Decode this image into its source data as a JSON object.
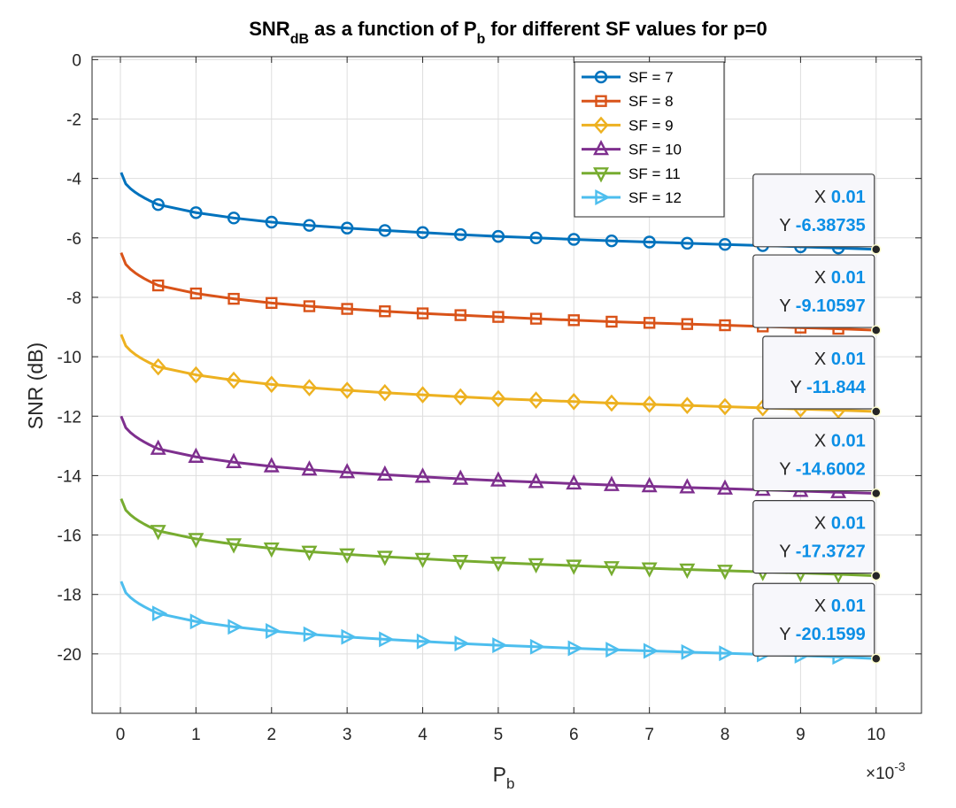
{
  "chart_data": {
    "type": "line",
    "title": {
      "main": "SNR",
      "main_sub": "dB",
      "middle": " as a function of P",
      "middle_sub": "b",
      "tail": " for different SF values for p=0"
    },
    "xlabel": {
      "main": "P",
      "sub": "b"
    },
    "ylabel": "SNR (dB)",
    "x_scale_note": {
      "base": "×10",
      "exponent": "-3"
    },
    "xlim": [
      -0.000375,
      0.0106
    ],
    "ylim": [
      -22,
      0.1
    ],
    "x_ticks": [
      0,
      0.001,
      0.002,
      0.003,
      0.004,
      0.005,
      0.006,
      0.007,
      0.008,
      0.009,
      0.01
    ],
    "x_tick_labels": [
      "0",
      "1",
      "2",
      "3",
      "4",
      "5",
      "6",
      "7",
      "8",
      "9",
      "10"
    ],
    "y_ticks": [
      0,
      -2,
      -4,
      -6,
      -8,
      -10,
      -12,
      -14,
      -16,
      -18,
      -20
    ],
    "y_tick_labels": [
      "0",
      "-2",
      "-4",
      "-6",
      "-8",
      "-10",
      "-12",
      "-14",
      "-16",
      "-18",
      "-20"
    ],
    "grid": true,
    "legend_position": "top-right",
    "x": [
      1e-05,
      0.0005,
      0.001,
      0.0015,
      0.002,
      0.0025,
      0.003,
      0.0035,
      0.004,
      0.0045,
      0.005,
      0.0055,
      0.006,
      0.0065,
      0.007,
      0.0075,
      0.008,
      0.0085,
      0.009,
      0.0095,
      0.01
    ],
    "series": [
      {
        "name": "SF = 7",
        "color": "#0072bd",
        "marker": "circle",
        "values": [
          -3.8,
          -4.88,
          -5.15,
          -5.33,
          -5.47,
          -5.58,
          -5.67,
          -5.75,
          -5.82,
          -5.89,
          -5.95,
          -6.0,
          -6.05,
          -6.1,
          -6.14,
          -6.18,
          -6.22,
          -6.26,
          -6.3,
          -6.34,
          -6.38735
        ]
      },
      {
        "name": "SF = 8",
        "color": "#d95319",
        "marker": "square",
        "values": [
          -6.5,
          -7.6,
          -7.87,
          -8.05,
          -8.19,
          -8.3,
          -8.39,
          -8.47,
          -8.54,
          -8.6,
          -8.66,
          -8.72,
          -8.77,
          -8.82,
          -8.86,
          -8.9,
          -8.94,
          -8.98,
          -9.02,
          -9.06,
          -9.10597
        ]
      },
      {
        "name": "SF = 9",
        "color": "#edb120",
        "marker": "diamond",
        "values": [
          -9.25,
          -10.34,
          -10.61,
          -10.79,
          -10.93,
          -11.04,
          -11.13,
          -11.21,
          -11.28,
          -11.35,
          -11.41,
          -11.46,
          -11.51,
          -11.56,
          -11.6,
          -11.64,
          -11.68,
          -11.72,
          -11.76,
          -11.8,
          -11.844
        ]
      },
      {
        "name": "SF = 10",
        "color": "#7e2f8e",
        "marker": "triangle-up",
        "values": [
          -12.0,
          -13.1,
          -13.37,
          -13.55,
          -13.69,
          -13.8,
          -13.89,
          -13.97,
          -14.04,
          -14.11,
          -14.17,
          -14.22,
          -14.27,
          -14.32,
          -14.36,
          -14.4,
          -14.44,
          -14.48,
          -14.52,
          -14.56,
          -14.6002
        ]
      },
      {
        "name": "SF = 11",
        "color": "#77ac30",
        "marker": "triangle-down",
        "values": [
          -14.78,
          -15.86,
          -16.13,
          -16.31,
          -16.45,
          -16.56,
          -16.65,
          -16.73,
          -16.8,
          -16.87,
          -16.93,
          -16.98,
          -17.03,
          -17.08,
          -17.12,
          -17.16,
          -17.2,
          -17.24,
          -17.28,
          -17.32,
          -17.3727
        ]
      },
      {
        "name": "SF = 12",
        "color": "#4dbeee",
        "marker": "triangle-right",
        "values": [
          -17.56,
          -18.64,
          -18.91,
          -19.09,
          -19.23,
          -19.34,
          -19.43,
          -19.51,
          -19.58,
          -19.65,
          -19.71,
          -19.76,
          -19.81,
          -19.86,
          -19.9,
          -19.94,
          -19.98,
          -20.02,
          -20.06,
          -20.1,
          -20.1599
        ]
      }
    ],
    "datatips": [
      {
        "x_label": "X",
        "x_value": "0.01",
        "y_label": "Y",
        "y_value": "-6.38735",
        "x": 0.01,
        "y": -6.38735
      },
      {
        "x_label": "X",
        "x_value": "0.01",
        "y_label": "Y",
        "y_value": "-9.10597",
        "x": 0.01,
        "y": -9.10597
      },
      {
        "x_label": "X",
        "x_value": "0.01",
        "y_label": "Y",
        "y_value": "-11.844",
        "x": 0.01,
        "y": -11.844
      },
      {
        "x_label": "X",
        "x_value": "0.01",
        "y_label": "Y",
        "y_value": "-14.6002",
        "x": 0.01,
        "y": -14.6002
      },
      {
        "x_label": "X",
        "x_value": "0.01",
        "y_label": "Y",
        "y_value": "-17.3727",
        "x": 0.01,
        "y": -17.3727
      },
      {
        "x_label": "X",
        "x_value": "0.01",
        "y_label": "Y",
        "y_value": "-20.1599",
        "x": 0.01,
        "y": -20.1599
      }
    ]
  }
}
